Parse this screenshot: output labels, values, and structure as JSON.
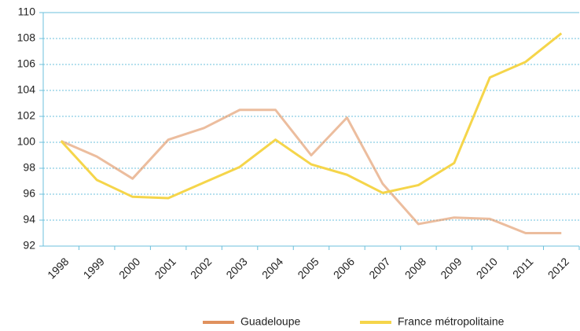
{
  "chart_data": {
    "type": "line",
    "categories": [
      "1998",
      "1999",
      "2000",
      "2001",
      "2002",
      "2003",
      "2004",
      "2005",
      "2006",
      "2007",
      "2008",
      "2009",
      "2010",
      "2011",
      "2012"
    ],
    "series": [
      {
        "name": "Guadeloupe",
        "color": "#e0915e",
        "values": [
          100.1,
          98.9,
          97.2,
          100.2,
          101.1,
          102.5,
          102.5,
          99.0,
          101.9,
          96.8,
          93.7,
          94.2,
          94.1,
          93.0,
          93.0
        ]
      },
      {
        "name": "France métropolitaine",
        "color": "#f5d54a",
        "values": [
          100.1,
          97.1,
          95.8,
          95.7,
          96.9,
          98.1,
          100.2,
          98.3,
          97.5,
          96.1,
          96.7,
          98.4,
          105.0,
          106.2,
          108.4
        ]
      }
    ],
    "ylim": [
      92,
      110
    ],
    "yticks": [
      92,
      94,
      96,
      98,
      100,
      102,
      104,
      106,
      108,
      110
    ],
    "grid": true
  }
}
